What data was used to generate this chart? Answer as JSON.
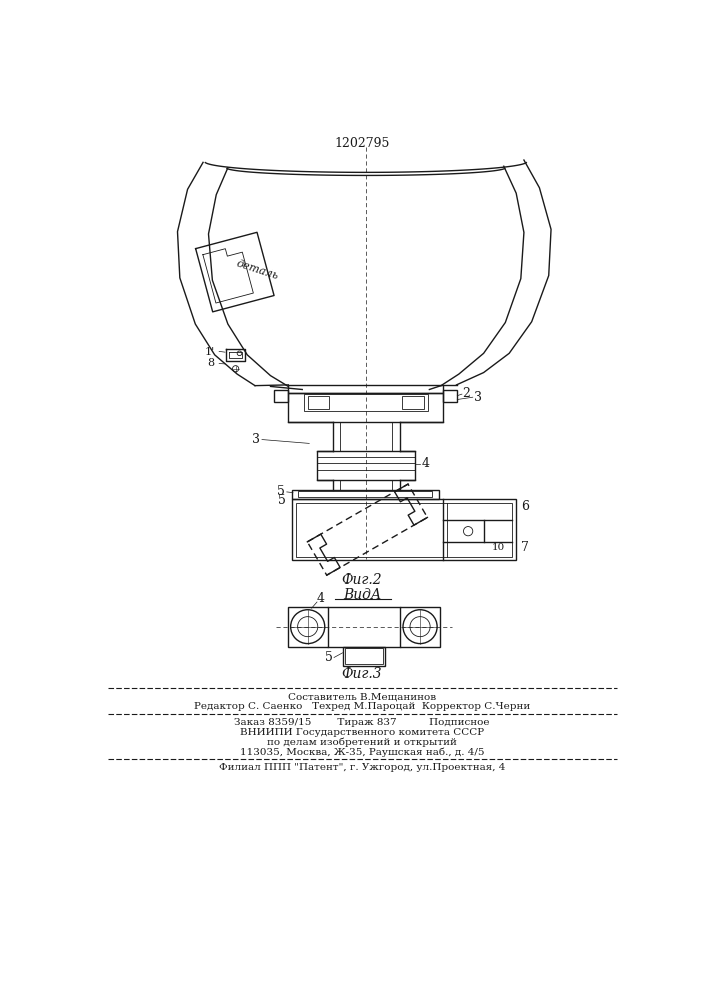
{
  "patent_number": "1202795",
  "bg_color": "#ffffff",
  "line_color": "#1a1a1a",
  "fig2_label": "Фиг.2",
  "fig3_label": "Фиг.3",
  "vida_label": "ВидА",
  "footer_line1": "Составитель В.Мещанинов",
  "footer_line2": "Редактор С. Саенко   Техред М.Пароцай  Корректор С.Черни",
  "footer_line3": "Заказ 8359/15        Тираж 837          Подписное",
  "footer_line4": "ВНИИПИ Государственного комитета СССР",
  "footer_line5": "по делам изобретений и открытий",
  "footer_line6": "113035, Москва, Ж-35, Раушская наб., д. 4/5",
  "footer_line7": "Филиал ППП \"Патент\", г. Ужгород, ул.Проектная, 4",
  "detal_label": "деталь"
}
